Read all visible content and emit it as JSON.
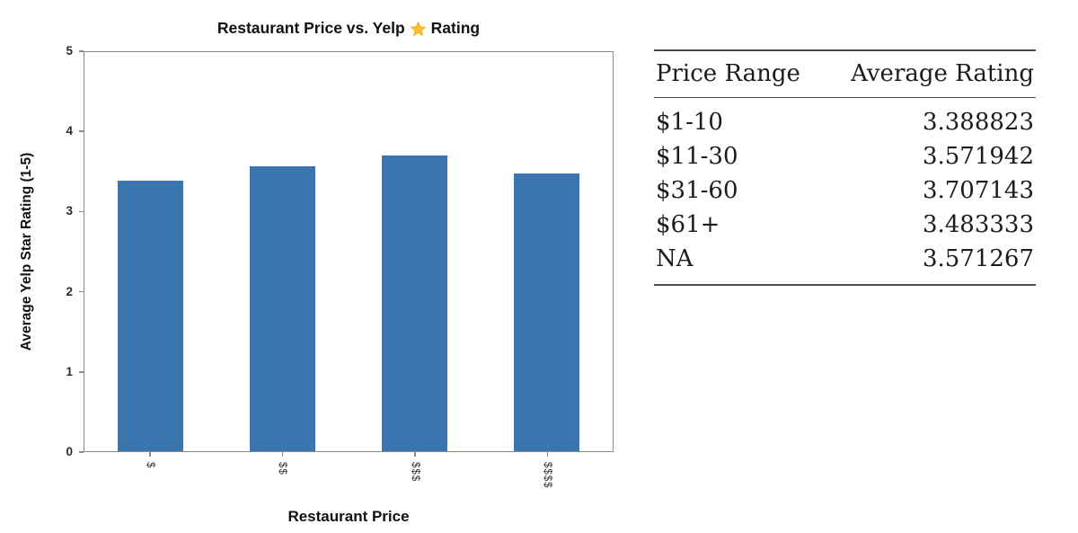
{
  "chart": {
    "title_prefix": "Restaurant Price vs. Yelp",
    "title_suffix": "Rating",
    "star_color": "#f8c12c",
    "bar_color": "#3a75b0",
    "spine_color": "#8a8a8a"
  },
  "chart_data": {
    "type": "bar",
    "title": "Restaurant Price vs. Yelp ⭐ Rating",
    "categories": [
      "$",
      "$$",
      "$$$",
      "$$$$"
    ],
    "values": [
      3.388823,
      3.571942,
      3.707143,
      3.483333
    ],
    "xlabel": "Restaurant Price",
    "ylabel": "Average Yelp Star Rating (1-5)",
    "ylim": [
      0,
      5
    ],
    "yticks": [
      0,
      1,
      2,
      3,
      4,
      5
    ],
    "xticklabel_rotation": 90,
    "grid": false,
    "legend": false,
    "bar_color": "#3a75b0"
  },
  "table": {
    "columns": [
      "Price Range",
      "Average Rating"
    ],
    "rows": [
      {
        "price_range": "$1-10",
        "average_rating": "3.388823"
      },
      {
        "price_range": "$11-30",
        "average_rating": "3.571942"
      },
      {
        "price_range": "$31-60",
        "average_rating": "3.707143"
      },
      {
        "price_range": "$61+",
        "average_rating": "3.483333"
      },
      {
        "price_range": "NA",
        "average_rating": "3.571267"
      }
    ]
  }
}
